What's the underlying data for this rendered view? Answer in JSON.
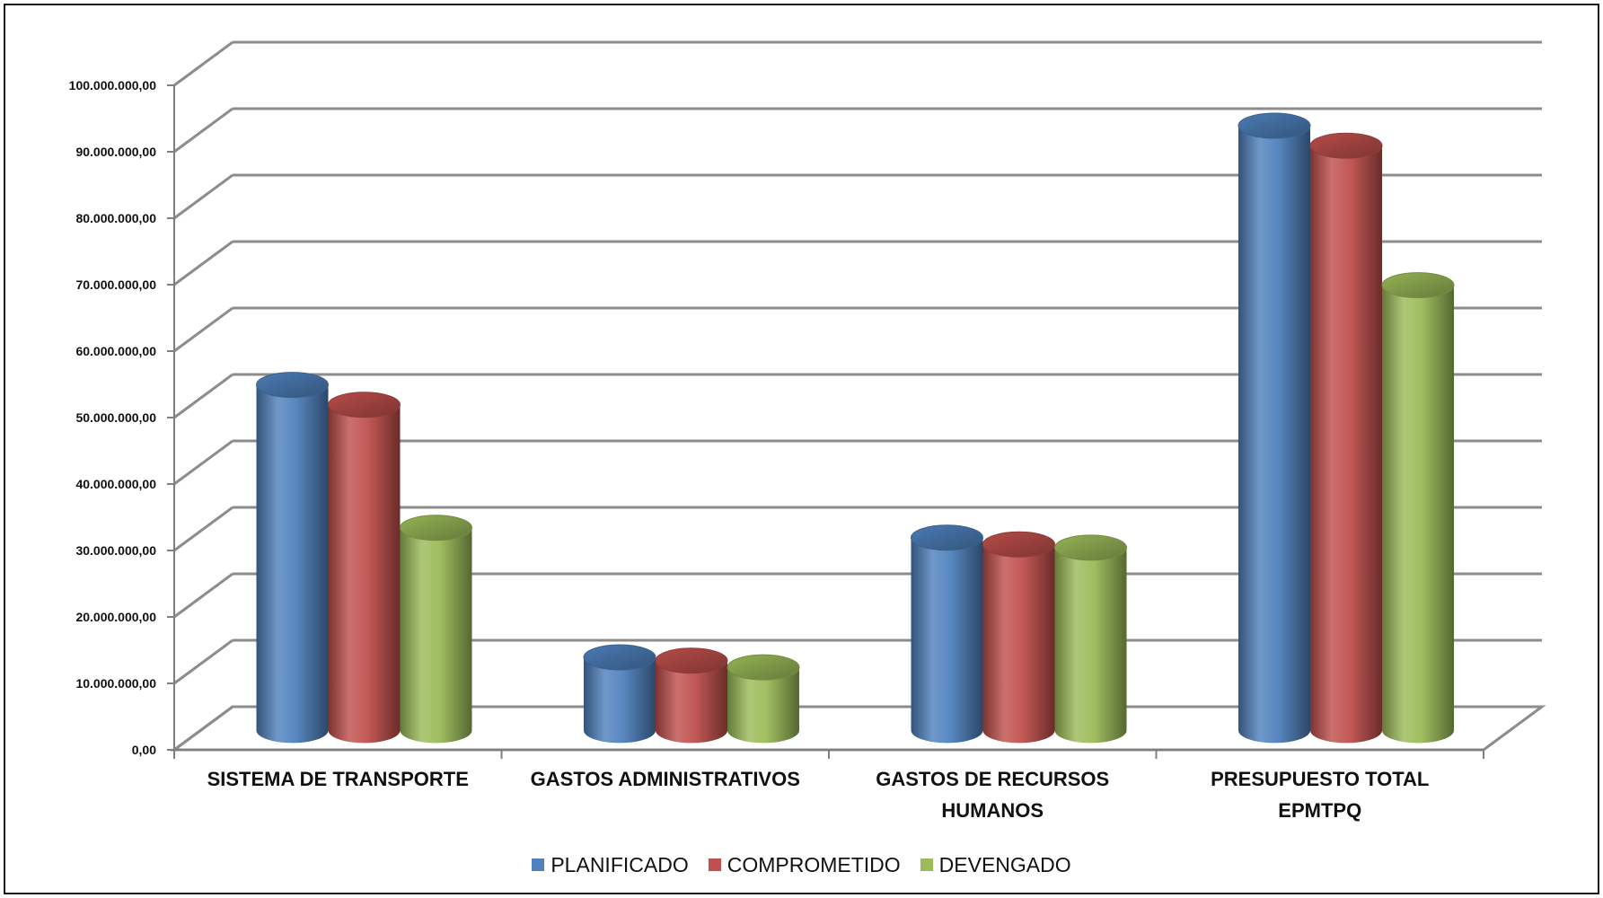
{
  "chart_data": {
    "type": "bar",
    "categories": [
      [
        "SISTEMA DE TRANSPORTE"
      ],
      [
        "GASTOS ADMINISTRATIVOS"
      ],
      [
        "GASTOS DE RECURSOS",
        "HUMANOS"
      ],
      [
        "PRESUPUESTO TOTAL",
        "EPMTPQ"
      ]
    ],
    "series": [
      {
        "name": "PLANIFICADO",
        "color": "#4F81BD",
        "values": [
          52000000,
          11000000,
          29000000,
          91000000
        ]
      },
      {
        "name": "COMPROMETIDO",
        "color": "#C0504D",
        "values": [
          49000000,
          10500000,
          28000000,
          88000000
        ]
      },
      {
        "name": "DEVENGADO",
        "color": "#9BBB59",
        "values": [
          30500000,
          9500000,
          27500000,
          67000000
        ]
      }
    ],
    "ylim": [
      0,
      100000000
    ],
    "ytick_labels": [
      "0,00",
      "10.000.000,00",
      "20.000.000,00",
      "30.000.000,00",
      "40.000.000,00",
      "50.000.000,00",
      "60.000.000,00",
      "70.000.000,00",
      "80.000.000,00",
      "90.000.000,00",
      "100.000.000,00"
    ],
    "grid": true,
    "legend_position": "bottom",
    "style": "3d-cylinder"
  }
}
